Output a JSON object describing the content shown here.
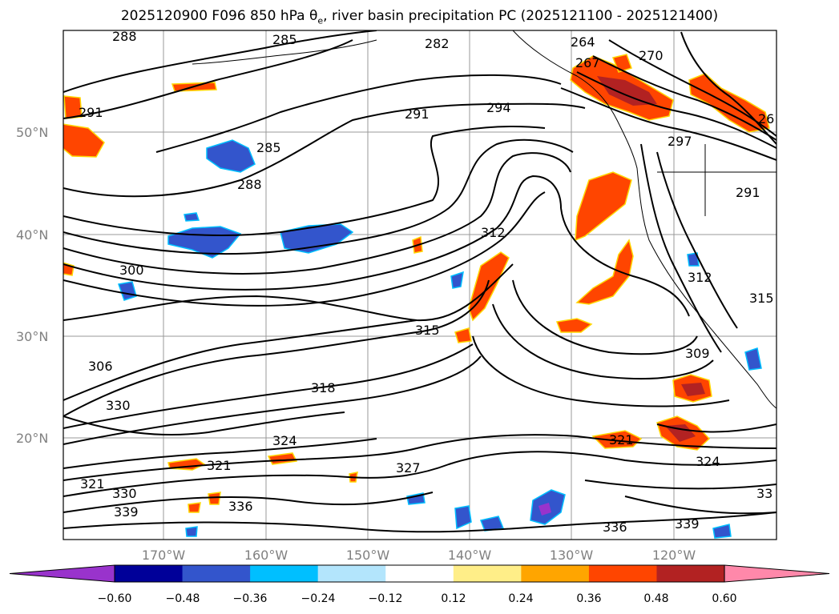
{
  "title": {
    "prefix": "2025120900 F096 850 hPa θ",
    "subscript": "e",
    "suffix": ", river basin precipitation PC (2025121100 - 2025121400)"
  },
  "map": {
    "region": "North-east Pacific / western North America",
    "lat_ticks": [
      "20°N",
      "30°N",
      "40°N",
      "50°N"
    ],
    "lon_ticks": [
      "170°W",
      "160°W",
      "150°W",
      "140°W",
      "130°W",
      "120°W"
    ],
    "gridlines": true,
    "contour_labels": [
      "288",
      "285",
      "282",
      "264",
      "267",
      "270",
      "291",
      "294",
      "297",
      "285",
      "288",
      "291",
      "300",
      "312",
      "315",
      "312",
      "315",
      "306",
      "309",
      "318",
      "330",
      "324",
      "321",
      "321",
      "327",
      "321",
      "324",
      "330",
      "336",
      "339",
      "336",
      "339",
      "33",
      "26",
      "291"
    ]
  },
  "colorbar": {
    "ticks": [
      "−0.60",
      "−0.48",
      "−0.36",
      "−0.24",
      "−0.12",
      "0.12",
      "0.24",
      "0.36",
      "0.48",
      "0.60"
    ],
    "colors": [
      "#9933cc",
      "#000099",
      "#3355cc",
      "#00bfff",
      "#b3e5fc",
      "#ffffff",
      "#ffee88",
      "#ffa500",
      "#ff4500",
      "#b22222",
      "#ff88aa"
    ]
  }
}
